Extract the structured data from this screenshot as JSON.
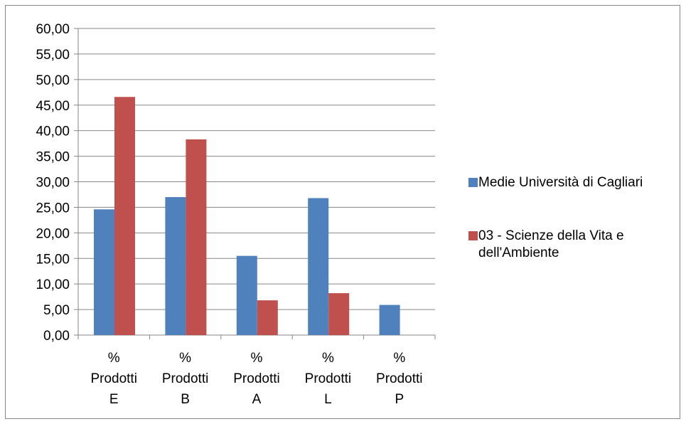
{
  "chart_data": {
    "type": "bar",
    "categories": [
      "% Prodotti E",
      "% Prodotti B",
      "% Prodotti A",
      "% Prodotti L",
      "% Prodotti P"
    ],
    "category_lines": [
      [
        "%",
        "Prodotti",
        "E"
      ],
      [
        "%",
        "Prodotti",
        "B"
      ],
      [
        "%",
        "Prodotti",
        "A"
      ],
      [
        "%",
        "Prodotti",
        "L"
      ],
      [
        "%",
        "Prodotti",
        "P"
      ]
    ],
    "series": [
      {
        "name": "Medie Università di Cagliari",
        "color": "#4f81bd",
        "values": [
          24.6,
          27.0,
          15.5,
          26.8,
          5.9
        ]
      },
      {
        "name": "03 - Scienze della Vita e dell'Ambiente",
        "color": "#c0504d",
        "values": [
          46.6,
          38.3,
          6.8,
          8.2,
          0.0
        ]
      }
    ],
    "ylim": [
      0,
      60
    ],
    "yticks": [
      "0,00",
      "5,00",
      "10,00",
      "15,00",
      "20,00",
      "25,00",
      "30,00",
      "35,00",
      "40,00",
      "45,00",
      "50,00",
      "55,00",
      "60,00"
    ],
    "grid": true,
    "legend_position": "right"
  },
  "legend": {
    "items": [
      {
        "lines": [
          "Medie Università di Cagliari"
        ],
        "color": "#4f81bd"
      },
      {
        "lines": [
          "03 - Scienze della Vita e",
          "dell'Ambiente"
        ],
        "color": "#c0504d"
      }
    ]
  }
}
